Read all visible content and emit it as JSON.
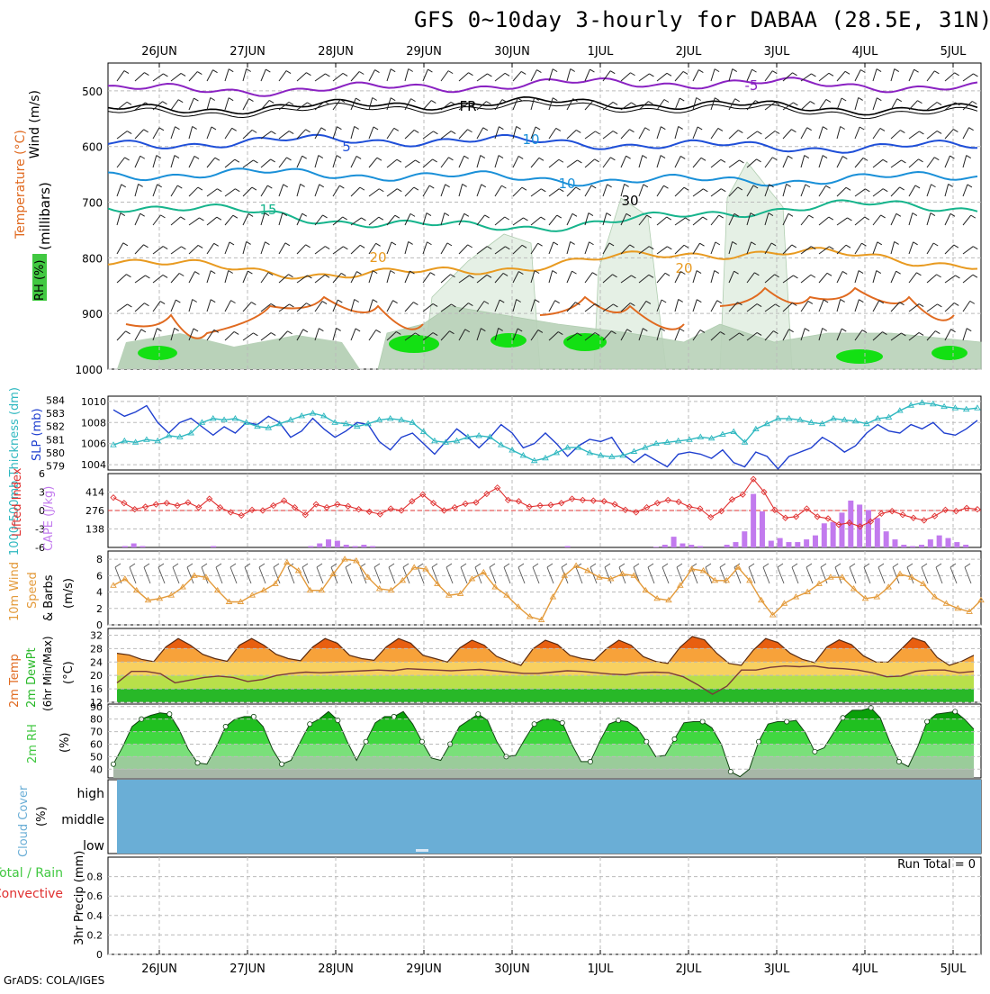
{
  "title": "GFS 0~10day 3-hourly for DABAA (28.5E, 31N)",
  "credit": "GrADS: COLA/IGES",
  "colors": {
    "temp_neg5": "#8a22c2",
    "temp_fr": "#000000",
    "temp_5": "#1f4fd8",
    "temp_10": "#1a90d8",
    "temp_15": "#16b48c",
    "temp_20": "#e89a20",
    "temp_25": "#e06a20",
    "rh_light": "#e3efe3",
    "rh_mid": "#b9d2b9",
    "rh_green": "#41c841",
    "rh_bright": "#13e013",
    "slp": "#1f3fcf",
    "thickness": "#2fb8c0",
    "lifted": "#e03030",
    "cape": "#c27aee",
    "wind10": "#e39a3a",
    "temp_fill_hi": "#e85f10",
    "temp_fill_mid": "#f7a23a",
    "temp_fill_low": "#f8d060",
    "dewpt_fill": "#28b828",
    "cloud": "#6aaed6"
  },
  "chart_data": [
    {
      "type": "contour",
      "panel": "upper-air",
      "ylabel": "(millibars)",
      "side_labels": [
        "Wind (m/s)",
        "Temperature (°C)",
        "RH (%)"
      ],
      "y_ticks": [
        500,
        600,
        700,
        800,
        900,
        1000
      ],
      "ylim": [
        1000,
        450
      ],
      "x_tick_labels": [
        "26JUN",
        "27JUN",
        "28JUN",
        "29JUN",
        "30JUN",
        "1JUL",
        "2JUL",
        "3JUL",
        "4JUL",
        "5JUL"
      ],
      "contour_labels": [
        "-5",
        "FR",
        "5",
        "10",
        "15",
        "20",
        "10",
        "30",
        "20"
      ],
      "isotherms": [
        {
          "label": "-5",
          "color_key": "temp_neg5",
          "p": 492
        },
        {
          "label": "FR",
          "color_key": "temp_fr",
          "p": 528
        },
        {
          "label": "5",
          "color_key": "temp_5",
          "p": 595
        },
        {
          "label": "10",
          "color_key": "temp_10",
          "p": 655
        },
        {
          "label": "15",
          "color_key": "temp_15",
          "p": 725
        },
        {
          "label": "20",
          "color_key": "temp_20",
          "p": 810
        }
      ]
    },
    {
      "type": "line",
      "panel": "slp-thickness",
      "ylabel_left": "1000-500mb Thickness (dm)",
      "ylabel_right": "SLP (mb)",
      "y_ticks_left": [
        579,
        580,
        581,
        582,
        583,
        584
      ],
      "y_ticks_right": [
        1004,
        1006,
        1008,
        1010
      ],
      "series": [
        {
          "name": "SLP (mb)",
          "color_key": "slp",
          "values": [
            1009.2,
            1008.6,
            1009.0,
            1009.6,
            1008.0,
            1007.0,
            1008.0,
            1008.4,
            1007.6,
            1006.8,
            1007.6,
            1007.0,
            1008.0,
            1007.8,
            1008.6,
            1008.0,
            1006.6,
            1007.2,
            1008.4,
            1007.4,
            1006.6,
            1007.2,
            1008.0,
            1007.8,
            1006.2,
            1005.4,
            1006.6,
            1007.0,
            1006.0,
            1005.0,
            1006.2,
            1007.4,
            1006.6,
            1005.6,
            1006.6,
            1007.8,
            1007.0,
            1005.6,
            1006.0,
            1007.0,
            1006.0,
            1004.8,
            1005.8,
            1006.4,
            1006.2,
            1006.6,
            1005.0,
            1004.2,
            1005.0,
            1004.4,
            1003.8,
            1005.0,
            1005.2,
            1005.0,
            1004.6,
            1005.4,
            1004.2,
            1003.8,
            1005.2,
            1004.8,
            1003.6,
            1004.8,
            1005.2,
            1005.6,
            1006.6,
            1006.0,
            1005.2,
            1005.8,
            1007.0,
            1007.8,
            1007.2,
            1007.0,
            1007.8,
            1007.4,
            1008.0,
            1007.0,
            1006.8,
            1007.4,
            1008.2
          ]
        },
        {
          "name": "Thickness (dm)",
          "color_key": "thickness",
          "values": [
            580.6,
            580.9,
            580.8,
            581.0,
            580.9,
            581.3,
            581.2,
            581.5,
            582.3,
            582.6,
            582.5,
            582.6,
            582.3,
            582.0,
            581.9,
            582.2,
            582.5,
            582.8,
            583.0,
            582.8,
            582.3,
            582.2,
            582.0,
            582.2,
            582.5,
            582.6,
            582.5,
            582.3,
            581.6,
            580.9,
            580.8,
            580.9,
            581.2,
            581.3,
            581.2,
            580.6,
            580.2,
            579.8,
            579.4,
            579.6,
            580.0,
            580.4,
            580.4,
            580.0,
            579.8,
            579.7,
            579.8,
            580.1,
            580.4,
            580.7,
            580.8,
            580.9,
            581.0,
            581.2,
            581.1,
            581.4,
            581.6,
            580.8,
            581.8,
            582.2,
            582.6,
            582.6,
            582.5,
            582.3,
            582.2,
            582.6,
            582.5,
            582.4,
            582.2,
            582.6,
            582.7,
            583.2,
            583.6,
            583.8,
            583.7,
            583.5,
            583.4,
            583.3,
            583.4
          ]
        }
      ]
    },
    {
      "type": "bar",
      "panel": "cape-lifted",
      "ylabel_left": "Lifted Index",
      "ylabel_right": "CAPE (J/kg)",
      "y_ticks_left": [
        6,
        3,
        0,
        -3,
        -6
      ],
      "y_ticks_right": [
        138,
        276,
        414
      ],
      "series": [
        {
          "name": "CAPE (J/kg)",
          "color_key": "cape",
          "values": [
            0,
            10,
            30,
            10,
            0,
            0,
            0,
            0,
            0,
            0,
            0,
            10,
            0,
            0,
            0,
            0,
            0,
            0,
            0,
            0,
            0,
            0,
            10,
            30,
            60,
            50,
            20,
            10,
            20,
            10,
            0,
            0,
            0,
            0,
            0,
            0,
            0,
            0,
            0,
            0,
            0,
            0,
            0,
            0,
            0,
            0,
            0,
            0,
            0,
            0,
            0,
            10,
            0,
            0,
            0,
            0,
            0,
            0,
            0,
            0,
            0,
            5,
            20,
            80,
            30,
            20,
            10,
            0,
            0,
            20,
            40,
            120,
            400,
            270,
            50,
            70,
            40,
            40,
            60,
            90,
            180,
            190,
            260,
            350,
            320,
            280,
            220,
            120,
            60,
            20,
            10,
            20,
            60,
            90,
            70,
            40,
            20,
            0
          ]
        },
        {
          "name": "Lifted Index",
          "color_key": "lifted",
          "values": [
            2.1,
            1.2,
            0.2,
            0.6,
            1.0,
            1.2,
            0.8,
            1.3,
            0.5,
            1.9,
            0.5,
            -0.3,
            -0.8,
            0.1,
            0.0,
            0.8,
            1.6,
            0.5,
            -0.7,
            1.0,
            0.5,
            1.0,
            0.7,
            0.2,
            -0.2,
            -0.6,
            0.3,
            0.0,
            1.5,
            2.6,
            1.2,
            0.0,
            0.5,
            1.1,
            1.3,
            2.7,
            3.7,
            1.7,
            1.5,
            0.6,
            0.8,
            0.9,
            1.2,
            1.9,
            1.7,
            1.6,
            1.5,
            1.0,
            0.1,
            -0.3,
            0.5,
            1.2,
            1.7,
            1.4,
            0.6,
            0.3,
            -1.1,
            -0.1,
            1.8,
            2.6,
            5.1,
            3.0,
            0.1,
            -1.2,
            -1.0,
            0.3,
            -1.0,
            -1.3,
            -2.3,
            -2.0,
            -2.6,
            -1.8,
            -0.5,
            -0.1,
            -0.7,
            -1.2,
            -1.6,
            -0.9,
            0.1,
            -0.1,
            0.4,
            0.2
          ]
        }
      ]
    },
    {
      "type": "line",
      "panel": "wind10m",
      "ylabel": "10m Wind Speed & Barbs (m/s)",
      "y_ticks": [
        0,
        2,
        4,
        6,
        8
      ],
      "ylim": [
        0,
        9
      ],
      "series": [
        {
          "name": "10m Wind Speed",
          "color_key": "wind10",
          "values": [
            4.8,
            5.6,
            4.2,
            3.0,
            3.2,
            3.6,
            4.6,
            6.0,
            5.8,
            4.2,
            2.8,
            2.8,
            3.6,
            4.2,
            5.0,
            7.6,
            6.6,
            4.2,
            4.2,
            6.2,
            8.0,
            7.8,
            5.8,
            4.4,
            4.2,
            5.4,
            7.0,
            6.8,
            5.0,
            3.6,
            3.8,
            5.6,
            6.4,
            4.6,
            3.6,
            2.2,
            1.0,
            0.6,
            3.4,
            6.0,
            7.2,
            6.6,
            5.8,
            5.6,
            6.2,
            6.0,
            4.2,
            3.2,
            3.0,
            4.8,
            6.8,
            6.6,
            5.4,
            5.4,
            7.0,
            5.4,
            3.0,
            1.2,
            2.6,
            3.4,
            4.0,
            5.0,
            5.8,
            5.8,
            4.4,
            3.2,
            3.4,
            4.6,
            6.2,
            5.8,
            5.0,
            3.4,
            2.6,
            2.0,
            1.6,
            3.0
          ]
        }
      ]
    },
    {
      "type": "area",
      "panel": "temp-dewpt",
      "ylabel": "2m Temp / 2m DewPt (6hr Min/Max) (°C)",
      "y_ticks": [
        12,
        16,
        20,
        24,
        28,
        32
      ],
      "ylim": [
        12,
        34
      ],
      "series": [
        {
          "name": "2m Temp",
          "color_key": "temp_fill_hi",
          "values": [
            26.6,
            26.1,
            24.8,
            24.1,
            28.5,
            31.0,
            29.0,
            26.3,
            25.0,
            24.2,
            29.0,
            31.0,
            29.0,
            26.3,
            25.0,
            24.4,
            28.5,
            31.0,
            29.6,
            26.0,
            25.0,
            24.5,
            28.5,
            31.0,
            29.6,
            26.0,
            25.0,
            24.0,
            28.2,
            30.5,
            29.0,
            25.7,
            24.2,
            23.0,
            28.0,
            30.5,
            29.2,
            26.0,
            25.0,
            24.5,
            28.0,
            30.5,
            29.0,
            25.6,
            24.2,
            23.6,
            28.4,
            31.6,
            30.6,
            26.6,
            23.6,
            23.0,
            27.6,
            31.0,
            29.8,
            26.6,
            24.8,
            23.8,
            28.5,
            30.6,
            29.2,
            25.8,
            24.0,
            24.0,
            27.6,
            31.2,
            30.0,
            25.4,
            23.0,
            24.2,
            26.0
          ]
        },
        {
          "name": "2m DewPt",
          "color_key": "dewpt_fill",
          "values": [
            17.8,
            21.2,
            21.2,
            20.5,
            17.8,
            18.6,
            19.4,
            19.8,
            19.4,
            18.2,
            18.8,
            20.0,
            20.6,
            21.0,
            20.8,
            21.0,
            21.2,
            21.4,
            21.6,
            21.4,
            22.0,
            21.8,
            21.6,
            21.4,
            21.6,
            21.8,
            21.4,
            21.0,
            20.6,
            20.6,
            21.0,
            21.4,
            21.2,
            20.8,
            20.4,
            20.2,
            20.8,
            21.0,
            20.8,
            19.6,
            17.2,
            14.4,
            16.8,
            21.6,
            21.6,
            22.4,
            22.8,
            22.6,
            22.8,
            22.2,
            22.0,
            21.6,
            20.8,
            19.6,
            19.8,
            21.2,
            21.6,
            21.6,
            20.8,
            21.2
          ]
        }
      ]
    },
    {
      "type": "area",
      "panel": "rh2m",
      "ylabel": "2m RH (%)",
      "y_ticks": [
        40,
        50,
        60,
        70,
        80,
        90
      ],
      "ylim": [
        33,
        92
      ],
      "series": [
        {
          "name": "2m RH",
          "color_key": "rh_green",
          "values": [
            44,
            58,
            74,
            80,
            83,
            85,
            84,
            72,
            56,
            45,
            44,
            58,
            74,
            80,
            82,
            82,
            74,
            56,
            44,
            47,
            62,
            76,
            80,
            86,
            79,
            62,
            47,
            62,
            77,
            82,
            82,
            86,
            76,
            62,
            49,
            47,
            60,
            74,
            79,
            84,
            79,
            62,
            50,
            51,
            64,
            76,
            80,
            80,
            77,
            60,
            46,
            46,
            62,
            76,
            79,
            78,
            73,
            62,
            50,
            51,
            64,
            77,
            78,
            78,
            73,
            60,
            38,
            34,
            40,
            62,
            76,
            78,
            78,
            79,
            69,
            54,
            57,
            69,
            81,
            87,
            87,
            89,
            81,
            62,
            46,
            42,
            58,
            78,
            84,
            85,
            86,
            80,
            72
          ]
        }
      ]
    },
    {
      "type": "heatmap",
      "panel": "cloud-cover",
      "ylabel": "Cloud Cover (%)",
      "y_tick_labels": [
        "high",
        "middle",
        "low"
      ]
    },
    {
      "type": "bar",
      "panel": "precip",
      "ylabel": "3hr Precip (mm)",
      "side_labels": [
        "Total / Rain",
        "Convective"
      ],
      "y_ticks": [
        0,
        0.2,
        0.4,
        0.6,
        0.8
      ],
      "ylim": [
        0,
        1
      ],
      "run_total_label": "Run Total = 0",
      "x_tick_labels": [
        "26JUN",
        "27JUN",
        "28JUN",
        "29JUN",
        "30JUN",
        "1JUL",
        "2JUL",
        "3JUL",
        "4JUL",
        "5JUL"
      ]
    }
  ]
}
